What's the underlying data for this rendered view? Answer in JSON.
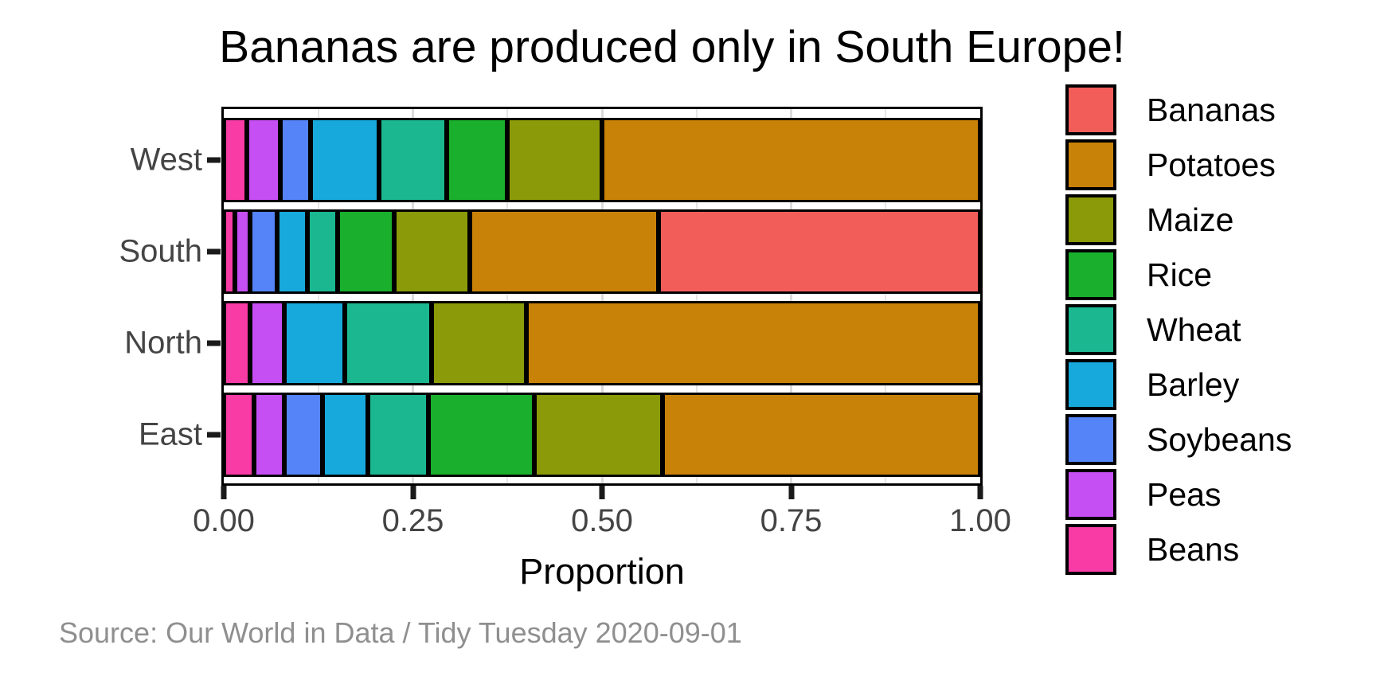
{
  "colors": {
    "title_text": "#000000",
    "axis_text": "#444444",
    "axis_title_text": "#000000",
    "caption_text": "#8F8F8F",
    "panel_border": "#000000",
    "bar_outline": "#000000",
    "grid_major": "#DBDBDB",
    "grid_minor": "#E6E6E6"
  },
  "chart_data": {
    "type": "bar",
    "orientation": "horizontal",
    "stacked": true,
    "normalized": true,
    "title": "Bananas are produced only in South Europe!",
    "xlabel": "Proportion",
    "ylabel": "",
    "caption": "Source: Our World in Data / Tidy Tuesday 2020-09-01",
    "xlim": [
      0,
      1
    ],
    "x_ticks": [
      "0.00",
      "0.25",
      "0.50",
      "0.75",
      "1.00"
    ],
    "x_tick_values": [
      0,
      0.25,
      0.5,
      0.75,
      1.0
    ],
    "grid_major": [
      0.25,
      0.5,
      0.75
    ],
    "grid_minor": [
      0.125,
      0.375,
      0.625,
      0.875
    ],
    "grid_on": true,
    "legend_position": "right",
    "categories": [
      "West",
      "South",
      "North",
      "East"
    ],
    "legend_order": [
      "Bananas",
      "Potatoes",
      "Maize",
      "Rice",
      "Wheat",
      "Barley",
      "Soybeans",
      "Peas",
      "Beans"
    ],
    "series": [
      {
        "name": "Beans",
        "color": "#F93BA6",
        "values": [
          0.03,
          0.015,
          0.035,
          0.04
        ]
      },
      {
        "name": "Peas",
        "color": "#C64FF4",
        "values": [
          0.045,
          0.02,
          0.045,
          0.04
        ]
      },
      {
        "name": "Soybeans",
        "color": "#5584F8",
        "values": [
          0.04,
          0.035,
          0.0,
          0.05
        ]
      },
      {
        "name": "Barley",
        "color": "#17A9DC",
        "values": [
          0.09,
          0.04,
          0.08,
          0.06
        ]
      },
      {
        "name": "Wheat",
        "color": "#1BB791",
        "values": [
          0.09,
          0.04,
          0.115,
          0.08
        ]
      },
      {
        "name": "Rice",
        "color": "#1AAF2C",
        "values": [
          0.08,
          0.075,
          0.0,
          0.14
        ]
      },
      {
        "name": "Maize",
        "color": "#8A9A09",
        "values": [
          0.125,
          0.1,
          0.125,
          0.17
        ]
      },
      {
        "name": "Potatoes",
        "color": "#C98208",
        "values": [
          0.5,
          0.25,
          0.6,
          0.42
        ]
      },
      {
        "name": "Bananas",
        "color": "#F25D5A",
        "values": [
          0.0,
          0.425,
          0.0,
          0.0
        ]
      }
    ]
  }
}
